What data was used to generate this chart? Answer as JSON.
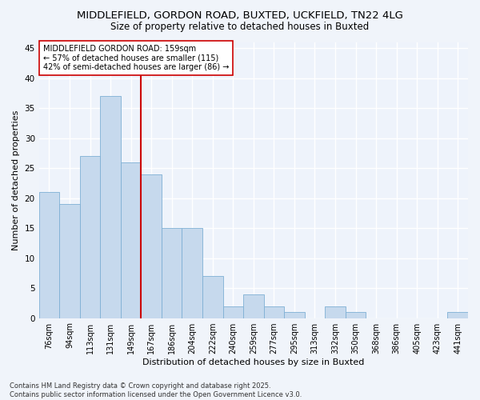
{
  "title_line1": "MIDDLEFIELD, GORDON ROAD, BUXTED, UCKFIELD, TN22 4LG",
  "title_line2": "Size of property relative to detached houses in Buxted",
  "xlabel": "Distribution of detached houses by size in Buxted",
  "ylabel": "Number of detached properties",
  "categories": [
    "76sqm",
    "94sqm",
    "113sqm",
    "131sqm",
    "149sqm",
    "167sqm",
    "186sqm",
    "204sqm",
    "222sqm",
    "240sqm",
    "259sqm",
    "277sqm",
    "295sqm",
    "313sqm",
    "332sqm",
    "350sqm",
    "368sqm",
    "386sqm",
    "405sqm",
    "423sqm",
    "441sqm"
  ],
  "values": [
    21,
    19,
    27,
    37,
    26,
    24,
    15,
    15,
    7,
    2,
    4,
    2,
    1,
    0,
    2,
    1,
    0,
    0,
    0,
    0,
    1
  ],
  "bar_color": "#c6d9ed",
  "bar_edge_color": "#7fb0d4",
  "vline_x": 4.5,
  "vline_color": "#cc0000",
  "annotation_text": "MIDDLEFIELD GORDON ROAD: 159sqm\n← 57% of detached houses are smaller (115)\n42% of semi-detached houses are larger (86) →",
  "annotation_box_color": "#ffffff",
  "annotation_box_edge": "#cc0000",
  "ylim": [
    0,
    46
  ],
  "yticks": [
    0,
    5,
    10,
    15,
    20,
    25,
    30,
    35,
    40,
    45
  ],
  "footnote": "Contains HM Land Registry data © Crown copyright and database right 2025.\nContains public sector information licensed under the Open Government Licence v3.0.",
  "bg_color": "#f0f4fa",
  "plot_bg_color": "#eef3fb",
  "grid_color": "#ffffff",
  "title_fontsize": 9.5,
  "subtitle_fontsize": 8.5,
  "label_fontsize": 8,
  "tick_fontsize": 7,
  "annot_fontsize": 7,
  "footnote_fontsize": 6
}
